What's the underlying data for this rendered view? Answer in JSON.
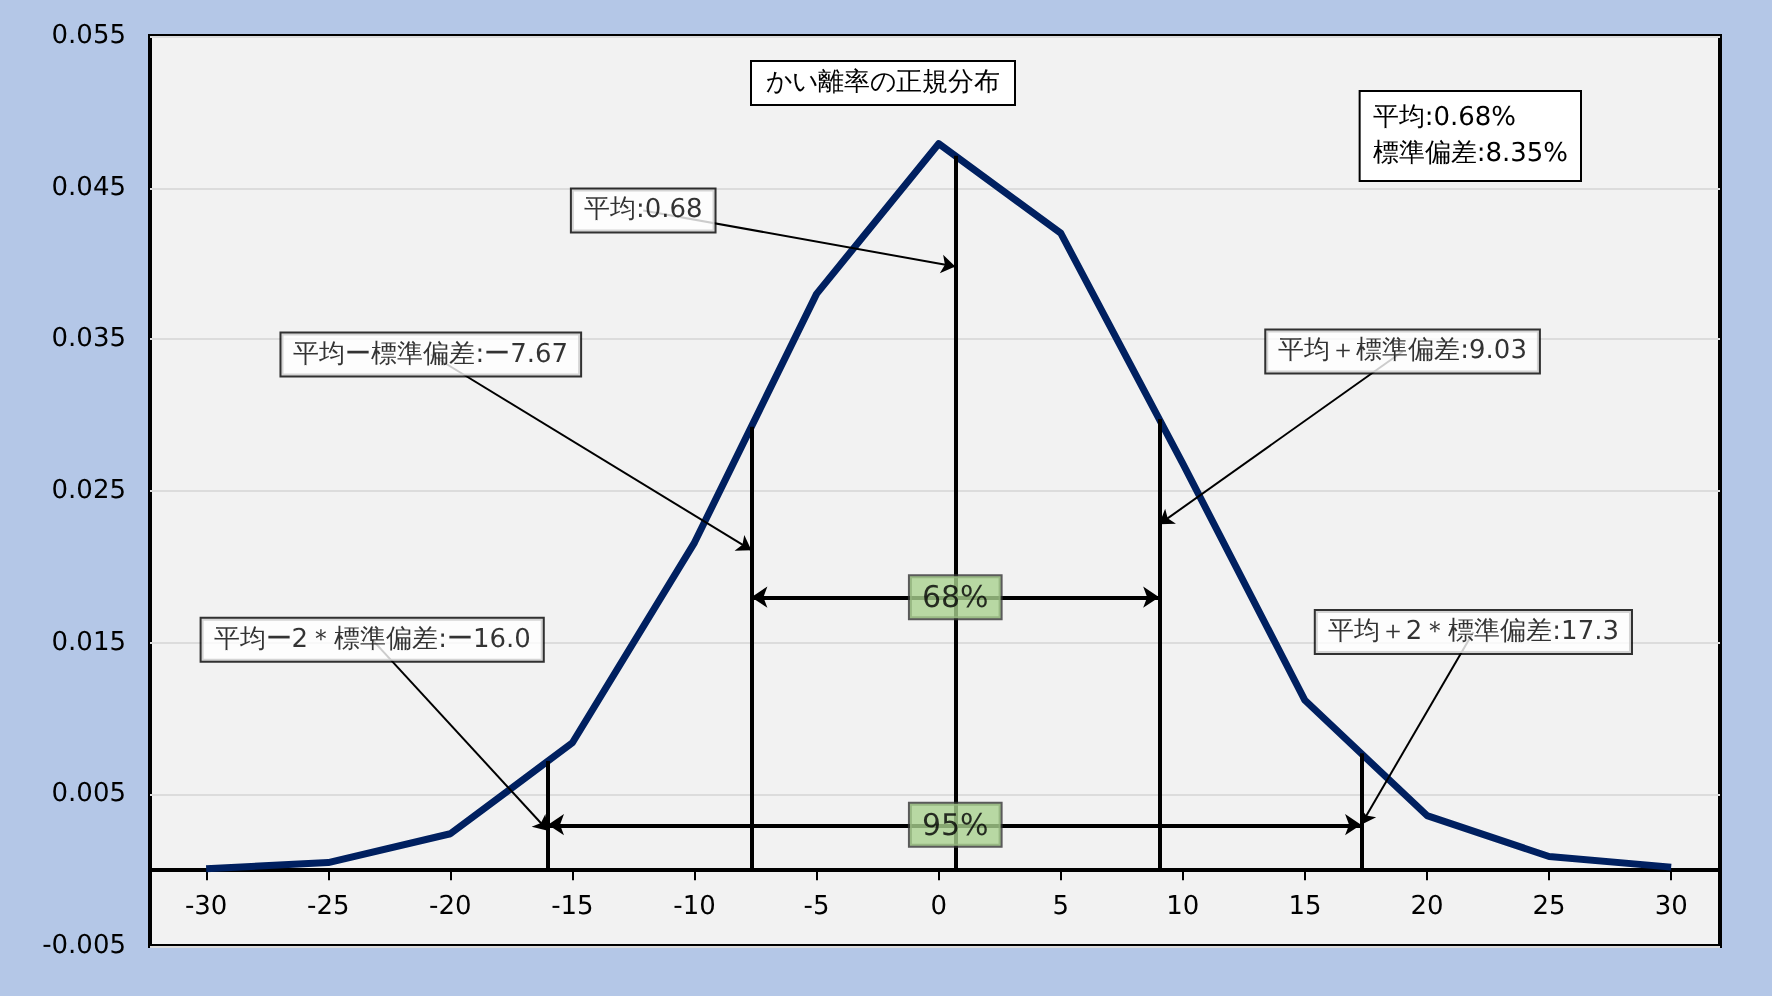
{
  "chart_data": {
    "type": "line",
    "title": "かい離率の正規分布",
    "x": [
      -30,
      -25,
      -20,
      -15,
      -10,
      -5,
      0,
      5,
      10,
      15,
      20,
      25,
      30
    ],
    "series": [
      {
        "color": "#002060",
        "values": [
          0.0001,
          0.0005,
          0.0024,
          0.0084,
          0.0216,
          0.038,
          0.0479,
          0.042,
          0.0268,
          0.0112,
          0.0036,
          0.0009,
          0.0002
        ]
      }
    ],
    "xlim": [
      -32.3,
      32
    ],
    "xticks": [
      -30,
      -25,
      -20,
      -15,
      -10,
      -5,
      0,
      5,
      10,
      15,
      20,
      25,
      30
    ],
    "ylim": [
      -0.005,
      0.055
    ],
    "yticks": [
      -0.005,
      0.005,
      0.015,
      0.025,
      0.035,
      0.045,
      0.055
    ],
    "grid": "y",
    "ref_lines": [
      {
        "axis": "x",
        "value": 0.68,
        "label": "平均:0.68"
      },
      {
        "axis": "x",
        "value": -7.67,
        "label": "平均ー標準偏差:ー7.67"
      },
      {
        "axis": "x",
        "value": 9.03,
        "label": "平均＋標準偏差:9.03"
      },
      {
        "axis": "x",
        "value": -16.0,
        "label": "平均ー2＊標準偏差:ー16.0"
      },
      {
        "axis": "x",
        "value": 17.3,
        "label": "平均＋2＊標準偏差:17.3"
      }
    ],
    "annotations": [
      "平均:0.68%\n標準偏差:8.35%",
      {
        "text": "68%",
        "x": 0.68,
        "y": 0.018
      },
      {
        "text": "95%",
        "x": 0.68,
        "y": 0.003
      }
    ]
  }
}
